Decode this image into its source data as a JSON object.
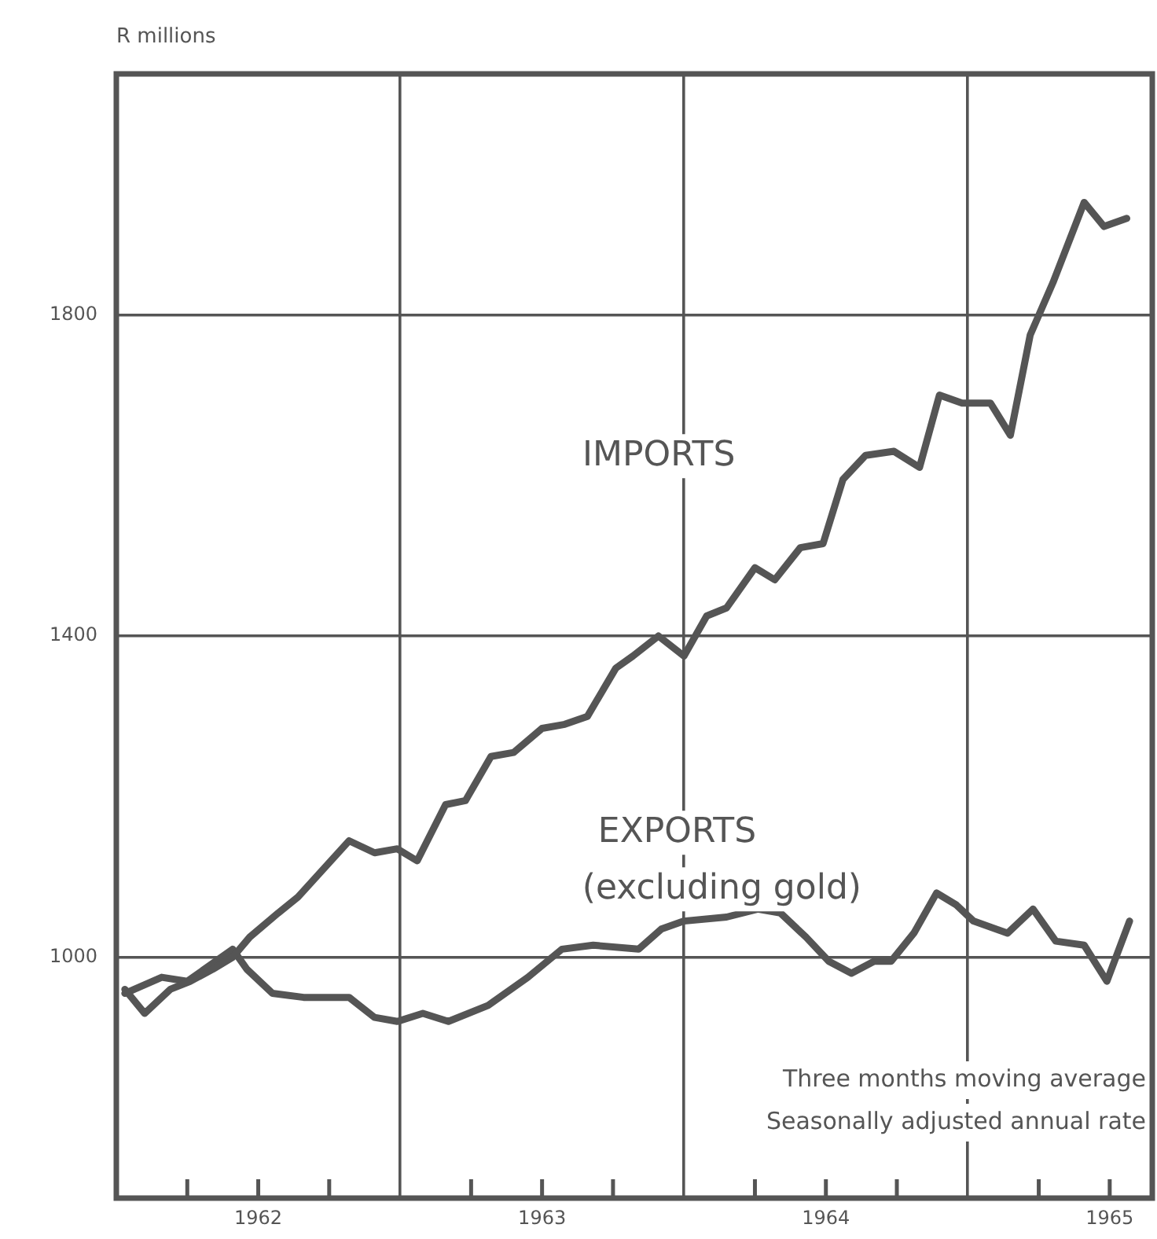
{
  "chart_data": {
    "type": "line",
    "ylabel": "R millions",
    "annotations": [
      "Three months moving average",
      "Seasonally adjusted annual rate"
    ],
    "xlim": [
      1962,
      1965.65
    ],
    "ylim": [
      700,
      2100
    ],
    "xticks": [
      {
        "value": 1962.25,
        "label": null
      },
      {
        "value": 1962.5,
        "label": "1962"
      },
      {
        "value": 1962.75,
        "label": null
      },
      {
        "value": 1963,
        "label": null
      },
      {
        "value": 1963.25,
        "label": null
      },
      {
        "value": 1963.5,
        "label": "1963"
      },
      {
        "value": 1963.75,
        "label": null
      },
      {
        "value": 1964,
        "label": null
      },
      {
        "value": 1964.25,
        "label": null
      },
      {
        "value": 1964.5,
        "label": "1964"
      },
      {
        "value": 1964.75,
        "label": null
      },
      {
        "value": 1965,
        "label": null
      },
      {
        "value": 1965.25,
        "label": null
      },
      {
        "value": 1965.5,
        "label": "1965"
      }
    ],
    "yticks": [
      1000,
      1400,
      1800
    ],
    "grid": true,
    "legend": false,
    "marker": "none",
    "line_style": "solid",
    "series": [
      {
        "name": "IMPORTS",
        "color": "#555555",
        "x": [
          1962.03,
          1962.1,
          1962.19,
          1962.26,
          1962.34,
          1962.41,
          1962.47,
          1962.57,
          1962.64,
          1962.73,
          1962.82,
          1962.91,
          1962.99,
          1963.06,
          1963.16,
          1963.23,
          1963.32,
          1963.4,
          1963.5,
          1963.58,
          1963.66,
          1963.76,
          1963.82,
          1963.91,
          1964.0,
          1964.08,
          1964.15,
          1964.25,
          1964.32,
          1964.41,
          1964.49,
          1964.56,
          1964.64,
          1964.74,
          1964.83,
          1964.9,
          1964.98,
          1965.08,
          1965.15,
          1965.22,
          1965.3,
          1965.41,
          1965.48,
          1965.56
        ],
        "values": [
          960,
          930,
          960,
          970,
          985,
          1000,
          1025,
          1055,
          1075,
          1110,
          1145,
          1130,
          1135,
          1120,
          1190,
          1195,
          1250,
          1255,
          1285,
          1290,
          1300,
          1360,
          1375,
          1400,
          1375,
          1425,
          1435,
          1485,
          1470,
          1510,
          1515,
          1595,
          1625,
          1630,
          1610,
          1700,
          1690,
          1690,
          1650,
          1775,
          1840,
          1940,
          1910,
          1920
        ]
      },
      {
        "name": "EXPORTS (excluding gold)",
        "color": "#555555",
        "x": [
          1962.03,
          1962.16,
          1962.25,
          1962.41,
          1962.46,
          1962.55,
          1962.66,
          1962.82,
          1962.91,
          1962.99,
          1963.08,
          1963.17,
          1963.31,
          1963.45,
          1963.57,
          1963.68,
          1963.84,
          1963.92,
          1964.0,
          1964.15,
          1964.26,
          1964.34,
          1964.43,
          1964.51,
          1964.59,
          1964.67,
          1964.73,
          1964.81,
          1964.89,
          1964.96,
          1965.02,
          1965.14,
          1965.23,
          1965.31,
          1965.41,
          1965.49,
          1965.57
        ],
        "values": [
          955,
          975,
          970,
          1010,
          985,
          955,
          950,
          950,
          925,
          920,
          930,
          920,
          940,
          975,
          1010,
          1015,
          1010,
          1035,
          1045,
          1050,
          1060,
          1055,
          1025,
          995,
          980,
          995,
          995,
          1030,
          1080,
          1065,
          1045,
          1030,
          1060,
          1020,
          1015,
          970,
          1045
        ]
      }
    ]
  }
}
